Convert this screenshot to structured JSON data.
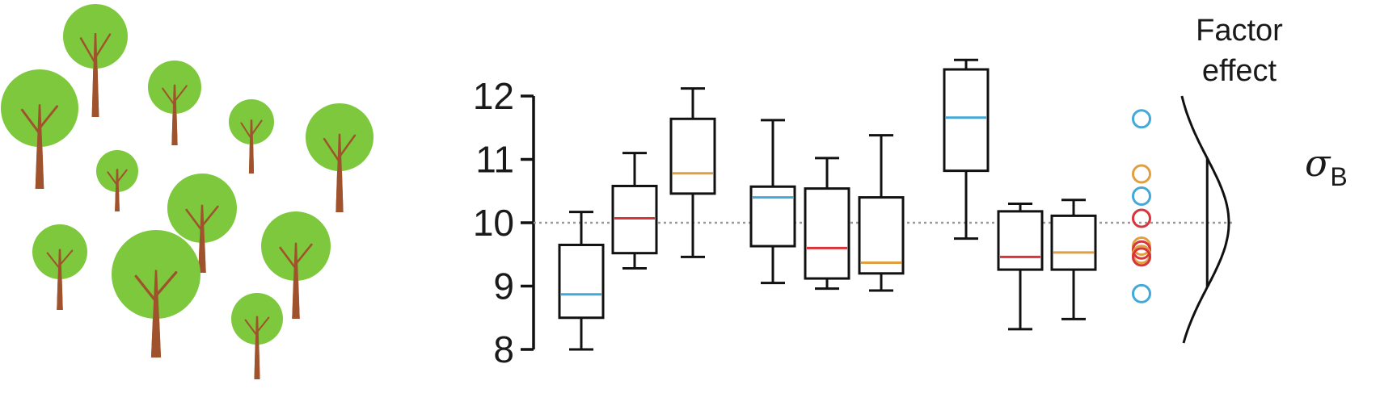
{
  "colors": {
    "blue": "#44a8d8",
    "red": "#d8343a",
    "orange": "#dfa043",
    "leaf": "#7dc83c",
    "trunk": "#a0522d"
  },
  "factor_label": {
    "line1": "Factor",
    "line2": "effect"
  },
  "sigma": {
    "symbol": "σ",
    "subscript": "B"
  },
  "icons": {
    "tree": "tree-icon"
  },
  "chart_data": {
    "type": "box",
    "title": "",
    "xlabel": "",
    "ylabel": "",
    "ylim": [
      8,
      12.5
    ],
    "yticks": [
      8,
      9,
      10,
      11,
      12
    ],
    "reference_line": 10,
    "groups": 3,
    "boxes": [
      {
        "group": 1,
        "color": "blue",
        "whisker_low": 8.0,
        "q1": 8.5,
        "median": 8.87,
        "q3": 9.65,
        "whisker_high": 10.17
      },
      {
        "group": 1,
        "color": "red",
        "whisker_low": 9.28,
        "q1": 9.52,
        "median": 10.07,
        "q3": 10.58,
        "whisker_high": 11.1
      },
      {
        "group": 1,
        "color": "orange",
        "whisker_low": 9.46,
        "q1": 10.46,
        "median": 10.78,
        "q3": 11.64,
        "whisker_high": 12.12
      },
      {
        "group": 2,
        "color": "blue",
        "whisker_low": 9.05,
        "q1": 9.63,
        "median": 10.4,
        "q3": 10.57,
        "whisker_high": 11.62
      },
      {
        "group": 2,
        "color": "red",
        "whisker_low": 8.96,
        "q1": 9.12,
        "median": 9.6,
        "q3": 10.54,
        "whisker_high": 11.02
      },
      {
        "group": 2,
        "color": "orange",
        "whisker_low": 8.93,
        "q1": 9.2,
        "median": 9.37,
        "q3": 10.4,
        "whisker_high": 11.38
      },
      {
        "group": 3,
        "color": "blue",
        "whisker_low": 9.75,
        "q1": 10.82,
        "median": 11.66,
        "q3": 12.42,
        "whisker_high": 12.57
      },
      {
        "group": 3,
        "color": "red",
        "whisker_low": 8.32,
        "q1": 9.26,
        "median": 9.46,
        "q3": 10.18,
        "whisker_high": 10.3
      },
      {
        "group": 3,
        "color": "orange",
        "whisker_low": 8.48,
        "q1": 9.26,
        "median": 9.53,
        "q3": 10.11,
        "whisker_high": 10.36
      }
    ],
    "group_means": [
      {
        "color": "blue",
        "value": 11.64
      },
      {
        "color": "orange",
        "value": 10.77
      },
      {
        "color": "blue",
        "value": 10.42
      },
      {
        "color": "red",
        "value": 10.07
      },
      {
        "color": "orange",
        "value": 9.63
      },
      {
        "color": "red",
        "value": 9.57
      },
      {
        "color": "orange",
        "value": 9.5
      },
      {
        "color": "red",
        "value": 9.46
      },
      {
        "color": "blue",
        "value": 8.88
      }
    ]
  }
}
